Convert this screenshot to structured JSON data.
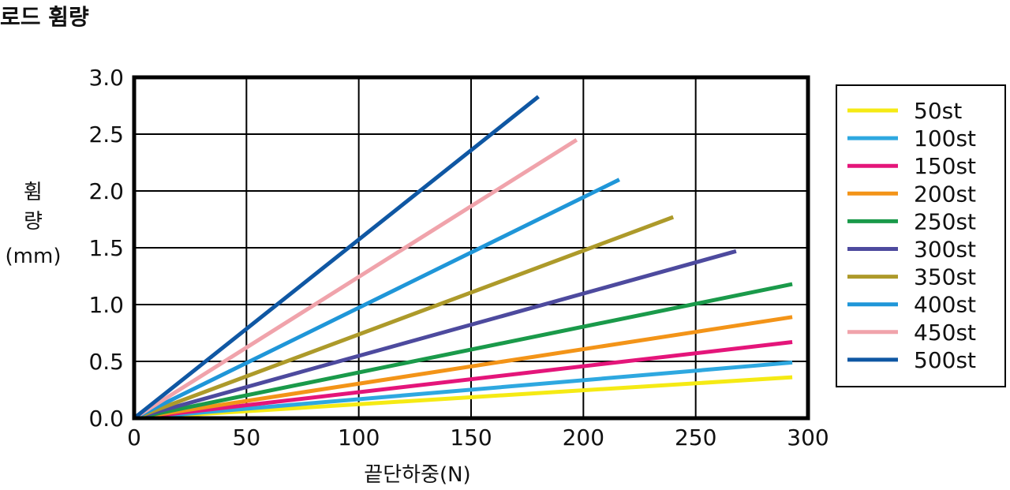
{
  "page": {
    "title": "로드 휨량"
  },
  "chart_data": {
    "type": "line",
    "xlabel": "끝단하중(N)",
    "ylabel_lines": [
      "휨",
      "량",
      "(mm)"
    ],
    "xlim": [
      0,
      300
    ],
    "ylim": [
      0,
      3.0
    ],
    "xticks": [
      0,
      50,
      100,
      150,
      200,
      250,
      300
    ],
    "xtick_labels": [
      "0",
      "50",
      "100",
      "150",
      "200",
      "250",
      "300"
    ],
    "yticks": [
      0,
      0.5,
      1.0,
      1.5,
      2.0,
      2.5,
      3.0
    ],
    "ytick_labels": [
      "0.0",
      "0.5",
      "1.0",
      "1.5",
      "2.0",
      "2.5",
      "3.0"
    ],
    "grid": true,
    "legend_position": "right",
    "series": [
      {
        "name": "50st",
        "color": "#f5ea14",
        "x": [
          0,
          293
        ],
        "y": [
          0,
          0.36
        ]
      },
      {
        "name": "100st",
        "color": "#2ea8e0",
        "x": [
          0,
          293
        ],
        "y": [
          0,
          0.49
        ]
      },
      {
        "name": "150st",
        "color": "#e4157a",
        "x": [
          0,
          293
        ],
        "y": [
          0,
          0.67
        ]
      },
      {
        "name": "200st",
        "color": "#f39418",
        "x": [
          0,
          293
        ],
        "y": [
          0,
          0.89
        ]
      },
      {
        "name": "250st",
        "color": "#1a9a4a",
        "x": [
          0,
          293
        ],
        "y": [
          0,
          1.18
        ]
      },
      {
        "name": "300st",
        "color": "#4d4a9e",
        "x": [
          0,
          268
        ],
        "y": [
          0,
          1.47
        ]
      },
      {
        "name": "350st",
        "color": "#ad9a2a",
        "x": [
          0,
          240
        ],
        "y": [
          0,
          1.77
        ]
      },
      {
        "name": "400st",
        "color": "#1f96d8",
        "x": [
          0,
          216
        ],
        "y": [
          0,
          2.1
        ]
      },
      {
        "name": "450st",
        "color": "#f0a3ab",
        "x": [
          0,
          197
        ],
        "y": [
          0,
          2.45
        ]
      },
      {
        "name": "500st",
        "color": "#0f57a3",
        "x": [
          0,
          180
        ],
        "y": [
          0,
          2.83
        ]
      }
    ]
  }
}
